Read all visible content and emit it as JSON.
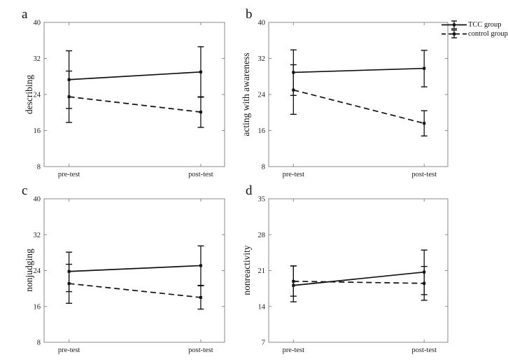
{
  "colors": {
    "background": "#ffffff",
    "data": "#111111",
    "axis": "#8a8a8a",
    "text": "#1a1a1a"
  },
  "legend": {
    "items": [
      {
        "label": "TCC group",
        "line_style": "solid"
      },
      {
        "label": "control group",
        "line_style": "dashed"
      }
    ]
  },
  "chart_data": [
    {
      "type": "line",
      "subtype": "errorbar",
      "panel_label": "a",
      "ylabel": "describing",
      "ylim": [
        8,
        40
      ],
      "yticks": [
        8,
        16,
        24,
        32,
        40
      ],
      "categories": [
        "pre-test",
        "post-test"
      ],
      "grid": false,
      "series": [
        {
          "name": "TCC group",
          "line_style": "solid",
          "values": [
            27.3,
            29.0
          ],
          "err_lower": [
            20.9,
            23.4
          ],
          "err_upper": [
            33.7,
            34.6
          ]
        },
        {
          "name": "control group",
          "line_style": "dashed",
          "values": [
            23.5,
            20.1
          ],
          "err_lower": [
            17.8,
            16.7
          ],
          "err_upper": [
            29.2,
            23.5
          ]
        }
      ]
    },
    {
      "type": "line",
      "subtype": "errorbar",
      "panel_label": "b",
      "ylabel": "acting with awareness",
      "ylim": [
        8,
        40
      ],
      "yticks": [
        8,
        16,
        24,
        32,
        40
      ],
      "categories": [
        "pre-test",
        "post-test"
      ],
      "grid": false,
      "series": [
        {
          "name": "TCC group",
          "line_style": "solid",
          "values": [
            28.9,
            29.8
          ],
          "err_lower": [
            23.8,
            25.7
          ],
          "err_upper": [
            33.9,
            33.8
          ]
        },
        {
          "name": "control group",
          "line_style": "dashed",
          "values": [
            25.0,
            17.6
          ],
          "err_lower": [
            19.6,
            14.8
          ],
          "err_upper": [
            30.6,
            20.4
          ]
        }
      ]
    },
    {
      "type": "line",
      "subtype": "errorbar",
      "panel_label": "c",
      "ylabel": "nonjudging",
      "ylim": [
        8,
        40
      ],
      "yticks": [
        8,
        16,
        24,
        32,
        40
      ],
      "categories": [
        "pre-test",
        "post-test"
      ],
      "grid": false,
      "series": [
        {
          "name": "TCC group",
          "line_style": "solid",
          "values": [
            23.8,
            25.1
          ],
          "err_lower": [
            19.3,
            20.7
          ],
          "err_upper": [
            28.1,
            29.5
          ]
        },
        {
          "name": "control group",
          "line_style": "dashed",
          "values": [
            21.1,
            18.0
          ],
          "err_lower": [
            16.7,
            15.4
          ],
          "err_upper": [
            25.4,
            20.6
          ]
        }
      ]
    },
    {
      "type": "line",
      "subtype": "errorbar",
      "panel_label": "d",
      "ylabel": "nonreactivity",
      "ylim": [
        7,
        35
      ],
      "yticks": [
        7,
        14,
        21,
        28,
        35
      ],
      "categories": [
        "pre-test",
        "post-test"
      ],
      "grid": false,
      "series": [
        {
          "name": "TCC group",
          "line_style": "solid",
          "values": [
            18.1,
            20.7
          ],
          "err_lower": [
            14.9,
            16.3
          ],
          "err_upper": [
            21.9,
            25.0
          ]
        },
        {
          "name": "control group",
          "line_style": "dashed",
          "values": [
            18.9,
            18.5
          ],
          "err_lower": [
            16.0,
            15.2
          ],
          "err_upper": [
            21.9,
            21.8
          ]
        }
      ]
    }
  ]
}
